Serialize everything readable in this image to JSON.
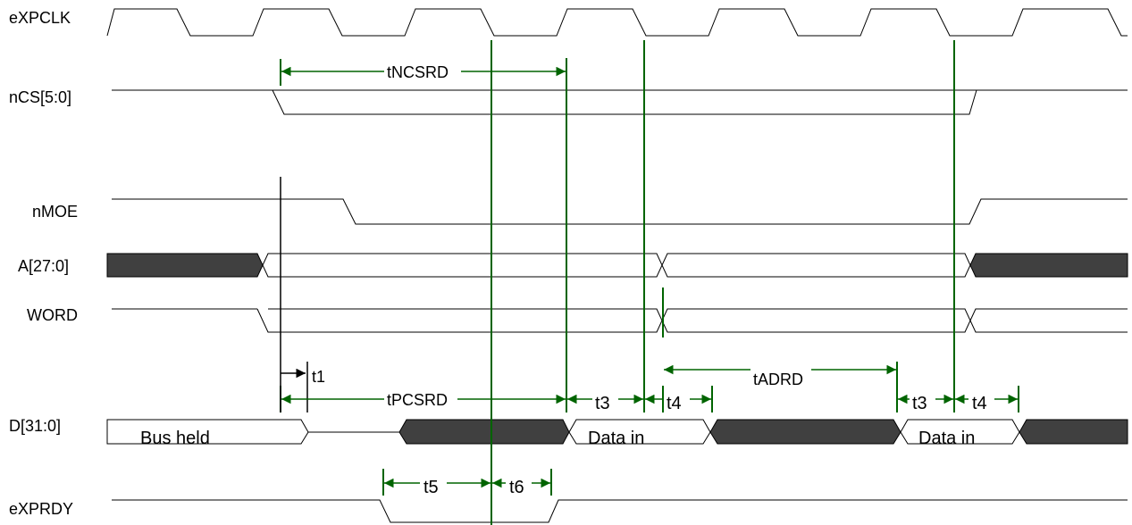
{
  "colors": {
    "line": "#000000",
    "bus_fill_dark": "#404040",
    "marker": "#006400",
    "background": "#ffffff"
  },
  "signals": [
    {
      "id": "eXPCLK",
      "label": "eXPCLK"
    },
    {
      "id": "nCS",
      "label": "nCS[5:0]"
    },
    {
      "id": "nMOE",
      "label": "nMOE"
    },
    {
      "id": "A",
      "label": "A[27:0]"
    },
    {
      "id": "WORD",
      "label": "WORD"
    },
    {
      "id": "D",
      "label": "D[31:0]"
    },
    {
      "id": "eXPRDY",
      "label": "eXPRDY"
    }
  ],
  "segments": {
    "bus_held": "Bus held",
    "data_in_1": "Data in",
    "data_in_2": "Data in"
  },
  "timings": {
    "tNCSRD": "tNCSRD",
    "tPCSRD": "tPCSRD",
    "tADRD": "tADRD",
    "t1": "t1",
    "t3_1": "t3",
    "t4_1": "t4",
    "t3_2": "t3",
    "t4_2": "t4",
    "t5": "t5",
    "t6": "t6"
  }
}
